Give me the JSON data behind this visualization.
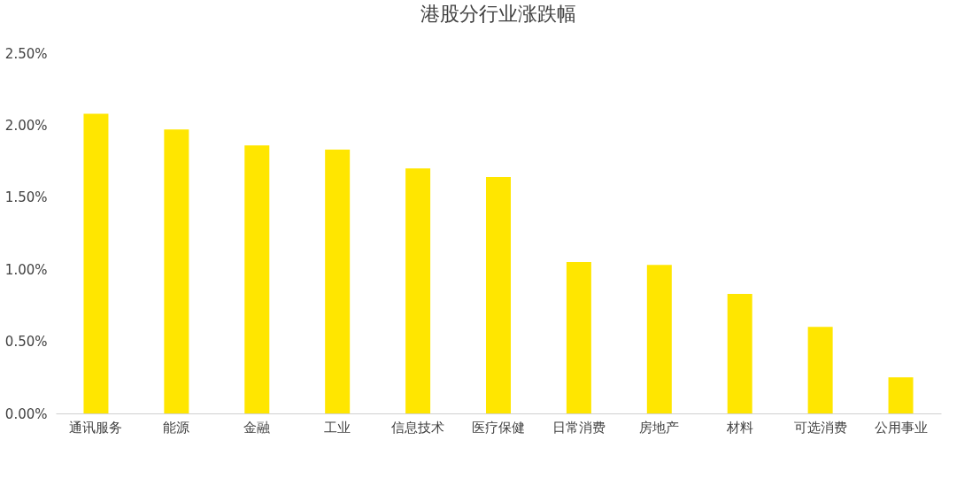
{
  "chart_data": {
    "type": "bar",
    "title": "港股分行业涨跌幅",
    "categories": [
      "通讯服务",
      "能源",
      "金融",
      "工业",
      "信息技术",
      "医疗保健",
      "日常消费",
      "房地产",
      "材料",
      "可选消费",
      "公用事业"
    ],
    "values": [
      2.08,
      1.97,
      1.86,
      1.83,
      1.7,
      1.64,
      1.05,
      1.03,
      0.83,
      0.6,
      0.25
    ],
    "color": "#ffe600",
    "ylim": [
      0,
      2.5
    ],
    "yticks": [
      {
        "value": 0,
        "label": "0.00%"
      },
      {
        "value": 0.5,
        "label": "0.50%"
      },
      {
        "value": 1,
        "label": "1.00%"
      },
      {
        "value": 1.5,
        "label": "1.50%"
      },
      {
        "value": 2,
        "label": "2.00%"
      },
      {
        "value": 2.5,
        "label": "2.50%"
      }
    ],
    "grid": false
  }
}
